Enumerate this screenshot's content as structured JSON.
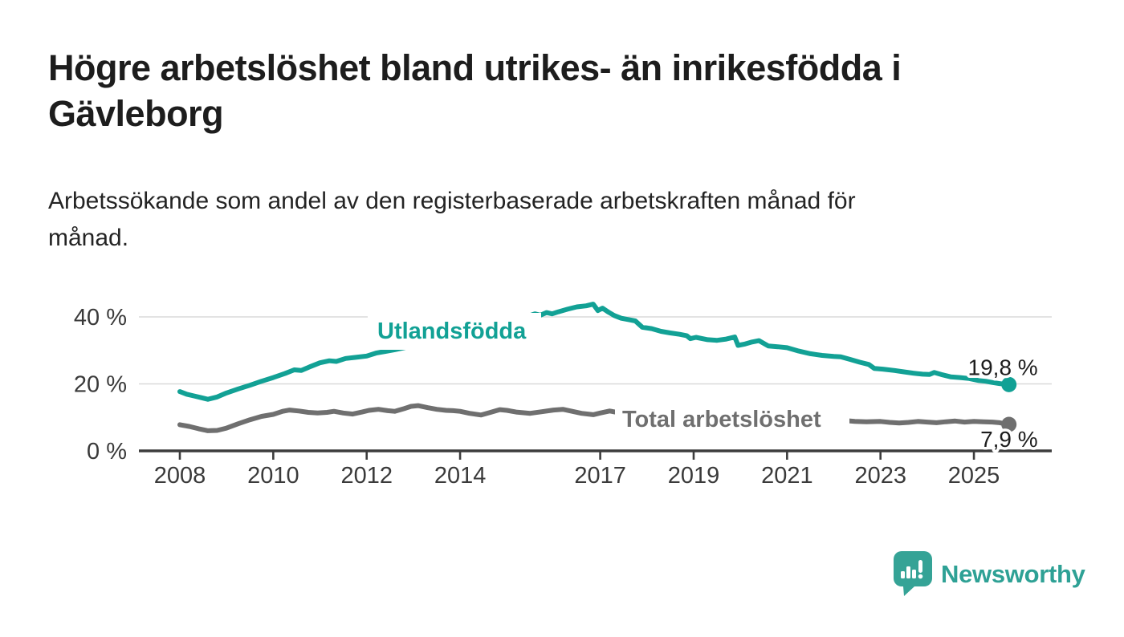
{
  "header": {
    "title_lines": [
      "Högre arbetslöshet bland utrikes- än inrikesfödda i",
      "Gävleborg"
    ],
    "subtitle_lines": [
      "Arbetssökande som andel av den registerbaserade arbetskraften månad för",
      "månad."
    ]
  },
  "footer": {
    "brand": "Newsworthy",
    "logo_icon": "speech-bubble-bar-chart-icon"
  },
  "colors": {
    "teal": "#12a195",
    "gray": "#6f6f6f",
    "title_text": "#1d1d1d",
    "axis_text": "#3a3a3a",
    "axis_line": "#3d3d3d",
    "gridline": "#dadada",
    "logo": "#35a396",
    "background": "#ffffff"
  },
  "chart_data": {
    "type": "line",
    "title": "Högre arbetslöshet bland utrikes- än inrikesfödda i Gävleborg",
    "subtitle": "Arbetssökande som andel av den registerbaserade arbetskraften månad för månad.",
    "xlabel": "",
    "ylabel": "",
    "unit": "%",
    "grid": "horizontal-gridlines-at-20-and-40",
    "legend_position": "inline-labels-on-lines",
    "x_range": [
      2008,
      2025.75
    ],
    "ylim": [
      0,
      46
    ],
    "y_axis": {
      "ticks": [
        {
          "label": "0 %",
          "value": 0
        },
        {
          "label": "20 %",
          "value": 20
        },
        {
          "label": "40 %",
          "value": 40
        }
      ]
    },
    "x_axis": {
      "ticks": [
        {
          "label": "2008",
          "year": 2008
        },
        {
          "label": "2010",
          "year": 2010
        },
        {
          "label": "2012",
          "year": 2012
        },
        {
          "label": "2014",
          "year": 2014
        },
        {
          "label": "2017",
          "year": 2017
        },
        {
          "label": "2019",
          "year": 2019
        },
        {
          "label": "2021",
          "year": 2021
        },
        {
          "label": "2023",
          "year": 2023
        },
        {
          "label": "2025",
          "year": 2025
        }
      ]
    },
    "series": [
      {
        "id": "utlandsfodda",
        "name": "Utlandsfödda",
        "color": "#12a195",
        "end_label": "19,8 %",
        "end_value": 19.8,
        "points": [
          [
            2008.0,
            17.7
          ],
          [
            2008.15,
            16.9
          ],
          [
            2008.3,
            16.4
          ],
          [
            2008.45,
            15.9
          ],
          [
            2008.6,
            15.4
          ],
          [
            2008.8,
            16.1
          ],
          [
            2009.0,
            17.3
          ],
          [
            2009.25,
            18.5
          ],
          [
            2009.5,
            19.6
          ],
          [
            2009.75,
            20.8
          ],
          [
            2010.0,
            21.9
          ],
          [
            2010.25,
            23.1
          ],
          [
            2010.45,
            24.2
          ],
          [
            2010.6,
            24.0
          ],
          [
            2010.8,
            25.2
          ],
          [
            2011.0,
            26.3
          ],
          [
            2011.2,
            26.9
          ],
          [
            2011.35,
            26.7
          ],
          [
            2011.55,
            27.6
          ],
          [
            2011.75,
            27.9
          ],
          [
            2012.0,
            28.3
          ],
          [
            2012.2,
            29.2
          ],
          [
            2012.4,
            29.7
          ],
          [
            2012.6,
            30.2
          ],
          [
            2012.8,
            30.8
          ],
          [
            2013.0,
            31.4
          ],
          [
            2013.3,
            32.2
          ],
          [
            2013.6,
            33.0
          ],
          [
            2014.0,
            34.1
          ],
          [
            2014.4,
            35.6
          ],
          [
            2014.8,
            37.3
          ],
          [
            2015.2,
            39.1
          ],
          [
            2015.45,
            40.2
          ],
          [
            2015.6,
            40.9
          ],
          [
            2015.72,
            40.5
          ],
          [
            2015.85,
            41.3
          ],
          [
            2015.97,
            40.9
          ],
          [
            2016.1,
            41.5
          ],
          [
            2016.3,
            42.3
          ],
          [
            2016.5,
            43.0
          ],
          [
            2016.7,
            43.3
          ],
          [
            2016.85,
            43.8
          ],
          [
            2016.95,
            41.9
          ],
          [
            2017.05,
            42.6
          ],
          [
            2017.18,
            41.4
          ],
          [
            2017.3,
            40.4
          ],
          [
            2017.45,
            39.6
          ],
          [
            2017.6,
            39.2
          ],
          [
            2017.75,
            38.8
          ],
          [
            2017.9,
            36.9
          ],
          [
            2018.1,
            36.5
          ],
          [
            2018.3,
            35.7
          ],
          [
            2018.5,
            35.2
          ],
          [
            2018.7,
            34.8
          ],
          [
            2018.85,
            34.4
          ],
          [
            2018.93,
            33.5
          ],
          [
            2019.05,
            33.9
          ],
          [
            2019.3,
            33.2
          ],
          [
            2019.5,
            33.0
          ],
          [
            2019.7,
            33.4
          ],
          [
            2019.88,
            34.0
          ],
          [
            2019.95,
            31.5
          ],
          [
            2020.1,
            31.9
          ],
          [
            2020.25,
            32.5
          ],
          [
            2020.4,
            32.9
          ],
          [
            2020.6,
            31.3
          ],
          [
            2020.8,
            31.1
          ],
          [
            2021.0,
            30.8
          ],
          [
            2021.25,
            29.8
          ],
          [
            2021.5,
            29.0
          ],
          [
            2021.75,
            28.5
          ],
          [
            2022.0,
            28.2
          ],
          [
            2022.15,
            28.1
          ],
          [
            2022.35,
            27.3
          ],
          [
            2022.55,
            26.5
          ],
          [
            2022.75,
            25.8
          ],
          [
            2022.87,
            24.6
          ],
          [
            2023.05,
            24.4
          ],
          [
            2023.3,
            24.0
          ],
          [
            2023.5,
            23.6
          ],
          [
            2023.7,
            23.2
          ],
          [
            2023.9,
            22.9
          ],
          [
            2024.05,
            22.8
          ],
          [
            2024.15,
            23.4
          ],
          [
            2024.3,
            22.8
          ],
          [
            2024.5,
            22.1
          ],
          [
            2024.7,
            21.9
          ],
          [
            2024.9,
            21.6
          ],
          [
            2025.1,
            21.0
          ],
          [
            2025.25,
            20.8
          ],
          [
            2025.4,
            20.4
          ],
          [
            2025.55,
            20.1
          ],
          [
            2025.75,
            19.8
          ]
        ]
      },
      {
        "id": "total",
        "name": "Total arbetslöshet",
        "color": "#6f6f6f",
        "end_label": "7,9 %",
        "end_value": 7.9,
        "points": [
          [
            2008.0,
            7.8
          ],
          [
            2008.2,
            7.3
          ],
          [
            2008.4,
            6.6
          ],
          [
            2008.6,
            6.0
          ],
          [
            2008.8,
            6.1
          ],
          [
            2009.0,
            6.8
          ],
          [
            2009.25,
            8.1
          ],
          [
            2009.5,
            9.3
          ],
          [
            2009.75,
            10.3
          ],
          [
            2010.0,
            10.9
          ],
          [
            2010.2,
            11.8
          ],
          [
            2010.35,
            12.2
          ],
          [
            2010.55,
            11.9
          ],
          [
            2010.75,
            11.5
          ],
          [
            2010.95,
            11.3
          ],
          [
            2011.15,
            11.5
          ],
          [
            2011.3,
            11.8
          ],
          [
            2011.5,
            11.3
          ],
          [
            2011.7,
            11.0
          ],
          [
            2011.9,
            11.6
          ],
          [
            2012.05,
            12.1
          ],
          [
            2012.25,
            12.4
          ],
          [
            2012.45,
            12.0
          ],
          [
            2012.6,
            11.8
          ],
          [
            2012.8,
            12.6
          ],
          [
            2012.95,
            13.3
          ],
          [
            2013.1,
            13.5
          ],
          [
            2013.3,
            12.9
          ],
          [
            2013.5,
            12.4
          ],
          [
            2013.7,
            12.1
          ],
          [
            2013.85,
            12.0
          ],
          [
            2014.0,
            11.8
          ],
          [
            2014.2,
            11.2
          ],
          [
            2014.45,
            10.7
          ],
          [
            2014.65,
            11.5
          ],
          [
            2014.85,
            12.3
          ],
          [
            2015.0,
            12.1
          ],
          [
            2015.2,
            11.6
          ],
          [
            2015.5,
            11.2
          ],
          [
            2015.75,
            11.7
          ],
          [
            2016.0,
            12.2
          ],
          [
            2016.2,
            12.4
          ],
          [
            2016.4,
            11.8
          ],
          [
            2016.6,
            11.2
          ],
          [
            2016.85,
            10.8
          ],
          [
            2017.0,
            11.3
          ],
          [
            2017.2,
            11.9
          ],
          [
            2017.4,
            11.4
          ],
          [
            2017.7,
            10.8
          ],
          [
            2018.0,
            11.0
          ],
          [
            2018.3,
            10.3
          ],
          [
            2018.6,
            9.8
          ],
          [
            2018.9,
            10.1
          ],
          [
            2019.1,
            10.0
          ],
          [
            2019.4,
            9.5
          ],
          [
            2019.6,
            9.3
          ],
          [
            2019.85,
            9.7
          ],
          [
            2019.95,
            9.2
          ],
          [
            2020.2,
            10.2
          ],
          [
            2020.4,
            11.0
          ],
          [
            2020.6,
            11.2
          ],
          [
            2020.85,
            10.8
          ],
          [
            2021.05,
            11.0
          ],
          [
            2021.3,
            10.5
          ],
          [
            2021.6,
            10.0
          ],
          [
            2021.9,
            9.5
          ],
          [
            2022.2,
            9.1
          ],
          [
            2022.45,
            8.8
          ],
          [
            2022.7,
            8.7
          ],
          [
            2023.0,
            8.8
          ],
          [
            2023.2,
            8.5
          ],
          [
            2023.4,
            8.3
          ],
          [
            2023.6,
            8.5
          ],
          [
            2023.8,
            8.8
          ],
          [
            2024.0,
            8.6
          ],
          [
            2024.2,
            8.4
          ],
          [
            2024.4,
            8.7
          ],
          [
            2024.6,
            8.9
          ],
          [
            2024.8,
            8.6
          ],
          [
            2025.0,
            8.8
          ],
          [
            2025.2,
            8.7
          ],
          [
            2025.4,
            8.6
          ],
          [
            2025.55,
            8.4
          ],
          [
            2025.75,
            7.9
          ]
        ]
      }
    ]
  }
}
